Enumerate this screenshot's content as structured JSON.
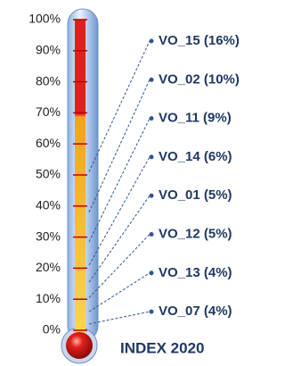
{
  "chart_data": {
    "type": "thermometer",
    "title": "INDEX 2020",
    "value_labels": [
      "VO_15 (16%)",
      "VO_02 (10%)",
      "VO_11 (9%)",
      "VO_14 (6%)",
      "VO_01 (5%)",
      "VO_12 (5%)",
      "VO_13 (4%)",
      "VO_07 (4%)"
    ],
    "values": [
      16,
      10,
      9,
      6,
      5,
      5,
      4,
      4
    ],
    "color": "#2f5597",
    "ylim": [
      0,
      100
    ],
    "yticks": [
      {
        "value": 0,
        "label": "0%"
      },
      {
        "value": 10,
        "label": "10%"
      },
      {
        "value": 20,
        "label": "20%"
      },
      {
        "value": 30,
        "label": "30%"
      },
      {
        "value": 40,
        "label": "40%"
      },
      {
        "value": 50,
        "label": "50%"
      },
      {
        "value": 60,
        "label": "60%"
      },
      {
        "value": 70,
        "label": "70%"
      },
      {
        "value": 80,
        "label": "80%"
      },
      {
        "value": 90,
        "label": "90%"
      },
      {
        "value": 100,
        "label": "100%"
      }
    ]
  }
}
